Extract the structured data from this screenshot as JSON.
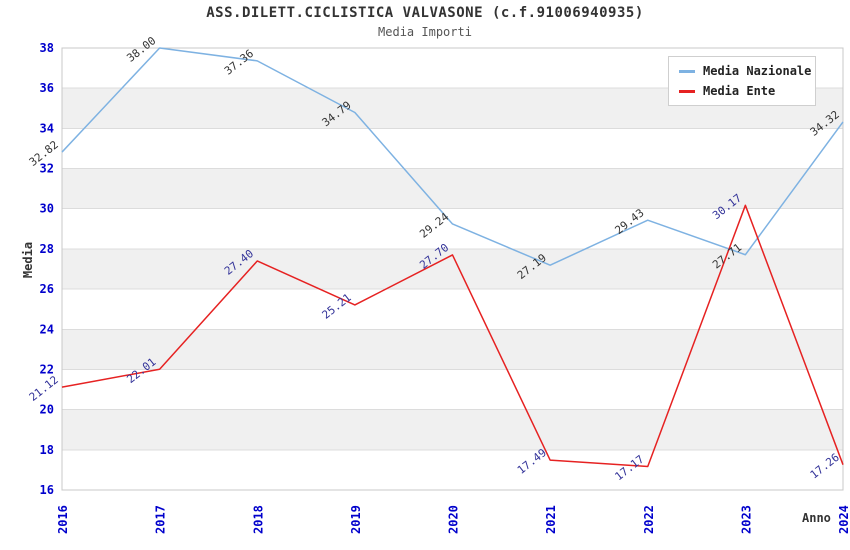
{
  "header": {
    "title": "ASS.DILETT.CICLISTICA VALVASONE (c.f.91006940935)",
    "subtitle": "Media Importi"
  },
  "chart_data": {
    "type": "line",
    "title": "ASS.DILETT.CICLISTICA VALVASONE (c.f.91006940935)",
    "subtitle": "Media Importi",
    "xlabel": "Anno",
    "ylabel": "Media",
    "categories": [
      "2016",
      "2017",
      "2018",
      "2019",
      "2020",
      "2021",
      "2022",
      "2023",
      "2024"
    ],
    "series": [
      {
        "name": "Media Nazionale",
        "color": "#7EB2E2",
        "label_color": "#333333",
        "values": [
          32.82,
          38.0,
          37.36,
          34.79,
          29.24,
          27.19,
          29.43,
          27.71,
          34.32
        ]
      },
      {
        "name": "Media Ente",
        "color": "#E62222",
        "label_color": "#333399",
        "values": [
          21.12,
          22.01,
          27.4,
          25.21,
          27.7,
          17.49,
          17.17,
          30.17,
          17.26
        ]
      }
    ],
    "ylim": [
      16,
      38
    ],
    "ytick_step": 2,
    "value_decimals": 2,
    "grid": true,
    "legend_position": "top-right",
    "tick_label_color": "#0000CC",
    "band_colors": [
      "#FFFFFF",
      "#F0F0F0"
    ],
    "gridline_color": "#DCDCDC",
    "plot_border_color": "#C8C8C8"
  }
}
